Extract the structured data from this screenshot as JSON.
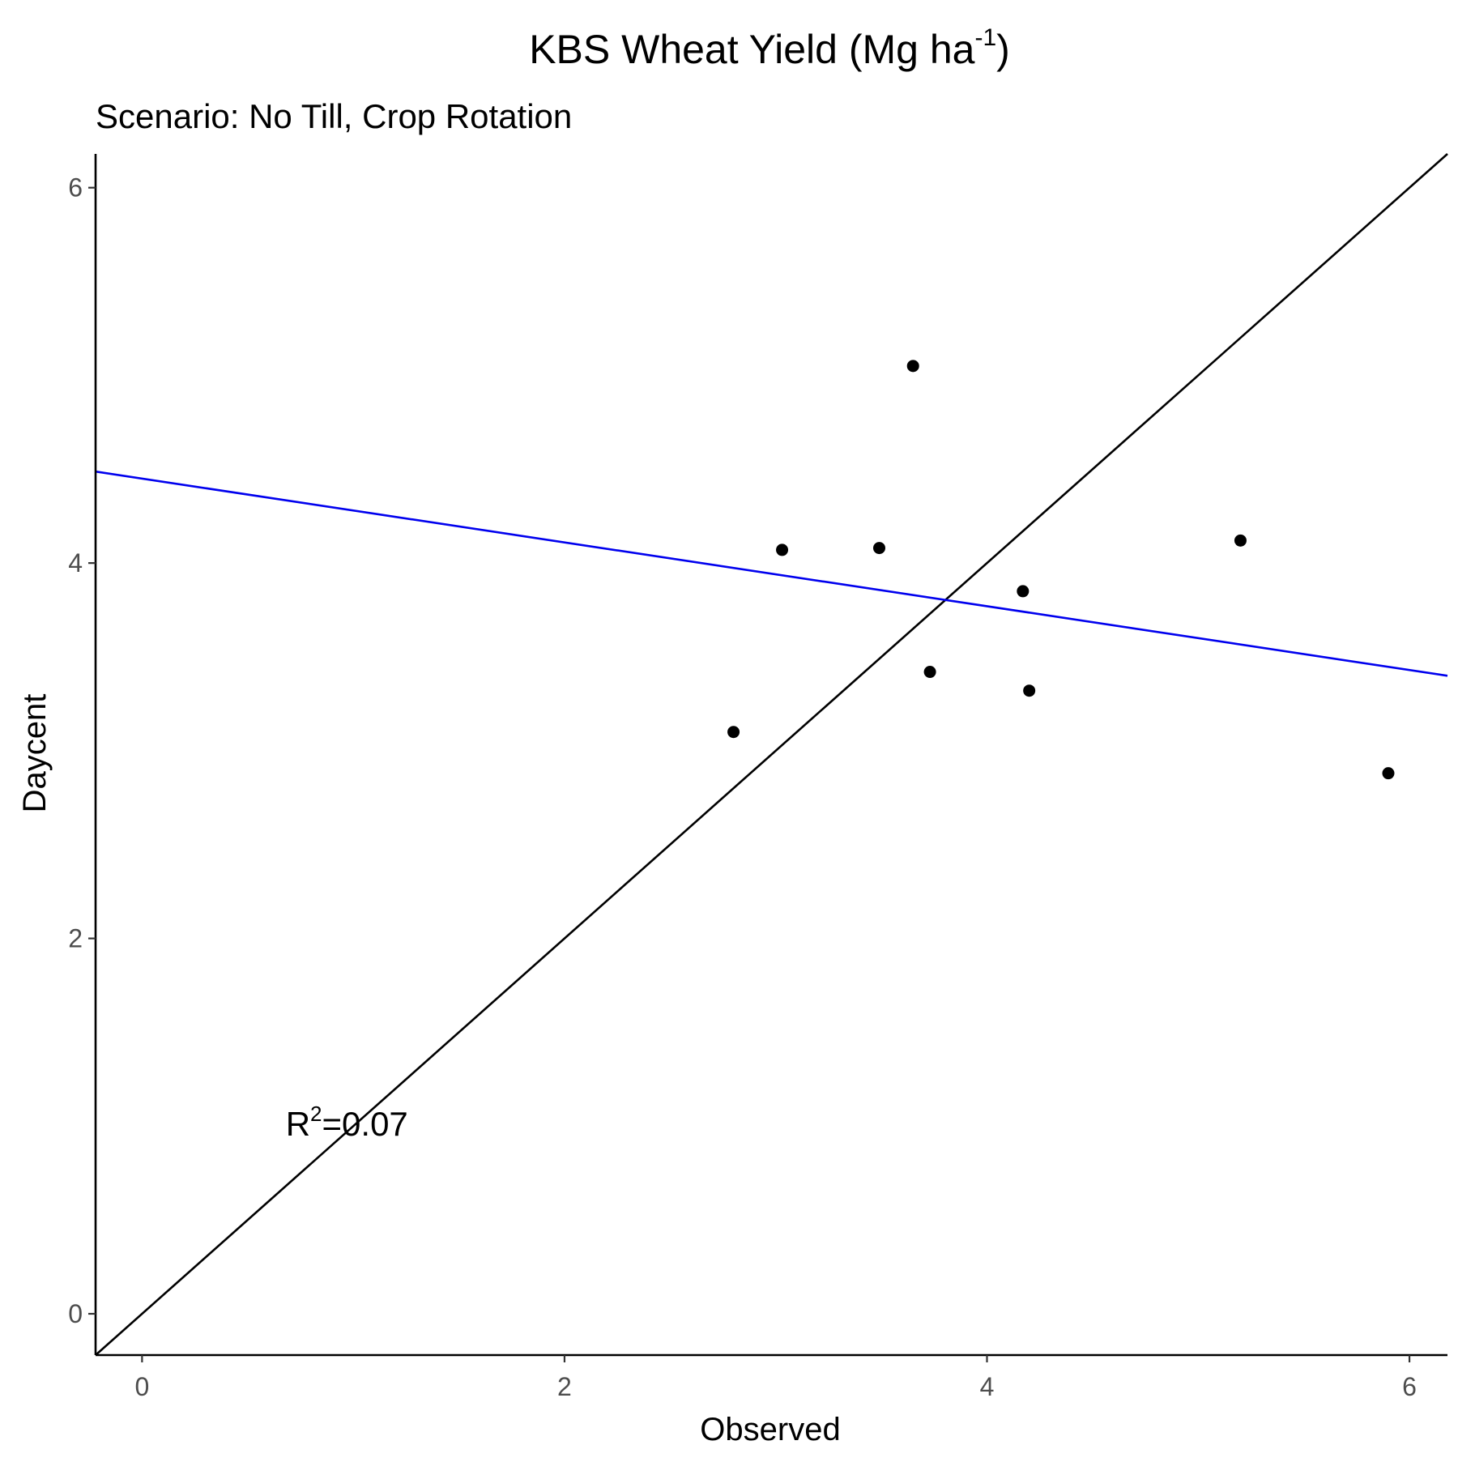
{
  "chart_data": {
    "type": "scatter",
    "title_main": "KBS Wheat Yield (Mg ha",
    "title_sup": "-1",
    "title_end": ")",
    "subtitle": "Scenario: No Till, Crop Rotation",
    "xlabel": "Observed",
    "ylabel": "Daycent",
    "xlim": [
      -0.22,
      6.18
    ],
    "ylim": [
      -0.22,
      6.18
    ],
    "x_ticks": [
      0,
      2,
      4,
      6
    ],
    "y_ticks": [
      0,
      2,
      4,
      6
    ],
    "x_tick_labels": [
      "0",
      "2",
      "4",
      "6"
    ],
    "y_tick_labels": [
      "0",
      "2",
      "4",
      "6"
    ],
    "grid": false,
    "points": [
      {
        "x": 2.8,
        "y": 3.1
      },
      {
        "x": 3.03,
        "y": 4.07
      },
      {
        "x": 3.49,
        "y": 4.08
      },
      {
        "x": 3.65,
        "y": 5.05
      },
      {
        "x": 3.73,
        "y": 3.42
      },
      {
        "x": 4.17,
        "y": 3.85
      },
      {
        "x": 4.2,
        "y": 3.32
      },
      {
        "x": 5.2,
        "y": 4.12
      },
      {
        "x": 5.9,
        "y": 2.88
      }
    ],
    "point_color": "#000000",
    "reference_line": {
      "type": "1:1",
      "intercept": 0,
      "slope": 1,
      "color": "#000000"
    },
    "regression_line": {
      "intercept": 4.45,
      "slope": -0.17,
      "color": "#0000ee"
    },
    "annotation": {
      "base": "R",
      "sup": "2",
      "rest": "=0.07",
      "x": 0.68,
      "y": 0.95
    }
  }
}
